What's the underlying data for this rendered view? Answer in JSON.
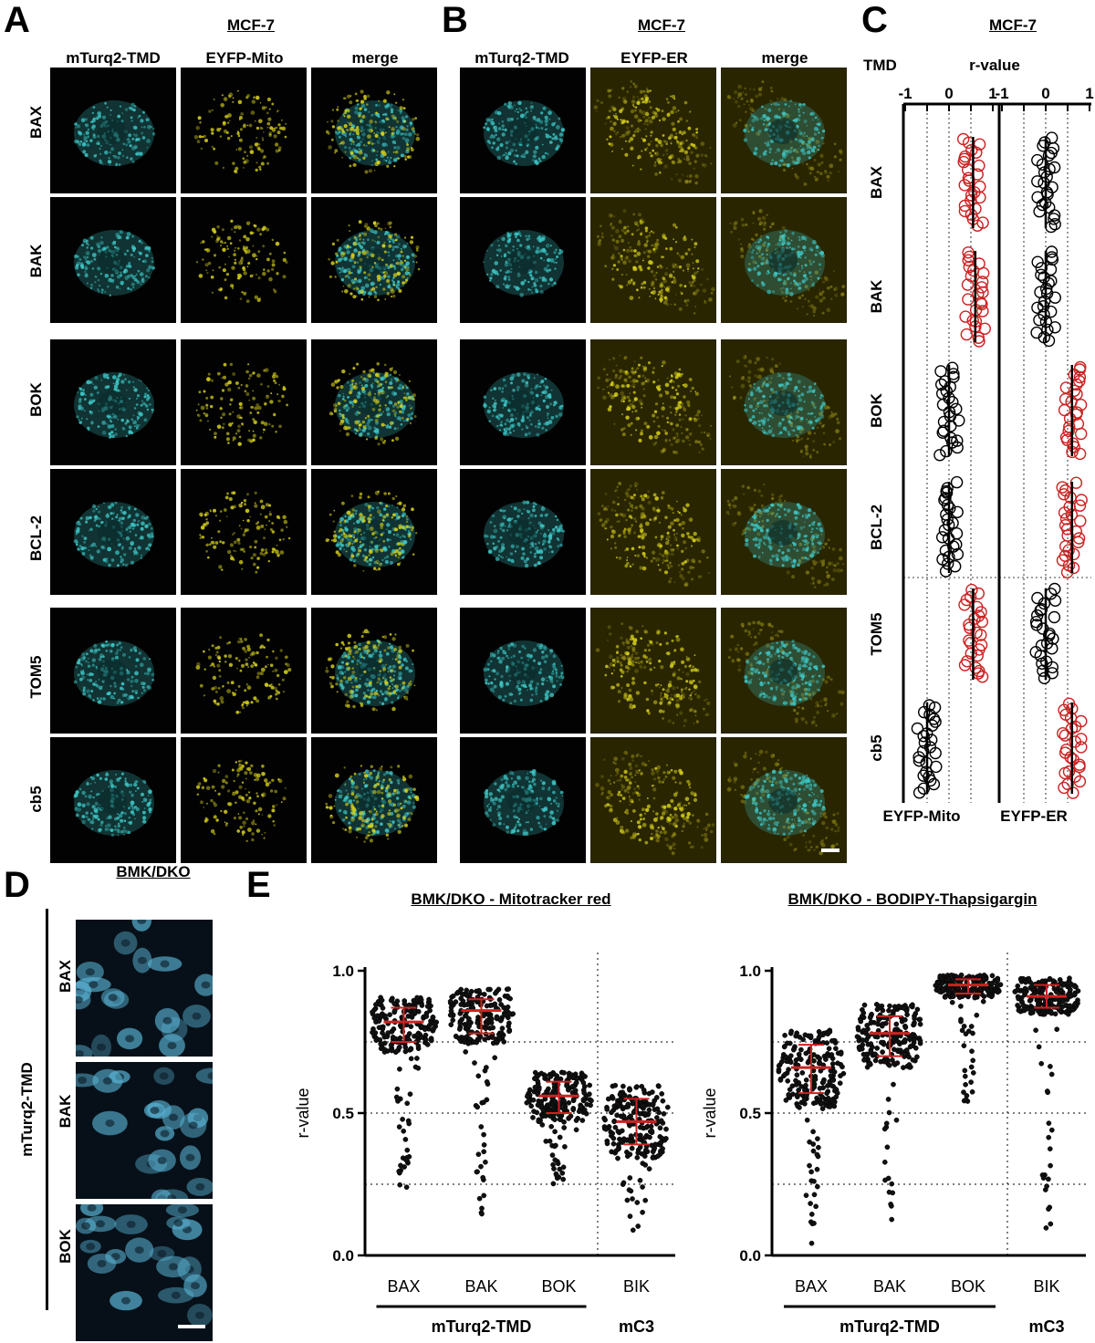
{
  "panels": {
    "A": {
      "letter": "A",
      "title": "MCF-7",
      "cols": [
        "mTurq2-TMD",
        "EYFP-Mito",
        "merge"
      ]
    },
    "B": {
      "letter": "B",
      "title": "MCF-7",
      "cols": [
        "mTurq2-TMD",
        "EYFP-ER",
        "merge"
      ]
    },
    "C": {
      "letter": "C",
      "title": "MCF-7",
      "tmd_label": "TMD",
      "rvalue_label": "r-value",
      "xticks": [
        "-1",
        "0",
        "1"
      ],
      "footer": [
        "EYFP-Mito",
        "EYFP-ER"
      ]
    },
    "D": {
      "letter": "D",
      "title": "BMK/DKO",
      "side_label": "mTurq2-TMD",
      "rows": [
        "BAX",
        "BAK",
        "BOK"
      ]
    },
    "E": {
      "letter": "E"
    }
  },
  "rows_AB": [
    "BAX",
    "BAK",
    "BOK",
    "BCL-2",
    "TOM5",
    "cb5"
  ],
  "colors": {
    "cyan": "#3ec8c8",
    "yellow": "#d8d21a",
    "red": "#cc2222",
    "dko_blue": "#5ab4d6"
  },
  "chart_data": [
    {
      "type": "scatter",
      "panel": "C",
      "title": "MCF-7",
      "xlabel": "r-value",
      "xlim": [
        -1,
        1
      ],
      "categories": [
        "BAX",
        "BAK",
        "BOK",
        "BCL-2",
        "TOM5",
        "cb5"
      ],
      "series": [
        {
          "name": "EYFP-Mito",
          "medians": [
            0.55,
            0.6,
            0.0,
            0.0,
            0.55,
            -0.5
          ]
        },
        {
          "name": "EYFP-ER",
          "medians": [
            0.0,
            0.0,
            0.6,
            0.6,
            0.0,
            0.6
          ]
        }
      ]
    },
    {
      "type": "scatter",
      "panel": "E",
      "title": "BMK/DKO - Mitotracker red",
      "ylabel": "r-value",
      "ylim": [
        0.0,
        1.0
      ],
      "yticks": [
        "0.0",
        "0.5",
        "1.0"
      ],
      "categories": [
        "BAX",
        "BAK",
        "BOK",
        "BIK"
      ],
      "groups": [
        {
          "label": "mTurq2-TMD",
          "span": [
            "BAX",
            "BOK"
          ]
        },
        {
          "label": "mC3",
          "span": [
            "BIK"
          ]
        }
      ],
      "median": [
        0.82,
        0.86,
        0.56,
        0.47
      ],
      "q1": [
        0.75,
        0.78,
        0.5,
        0.39
      ],
      "q3": [
        0.87,
        0.9,
        0.61,
        0.55
      ],
      "min": [
        0.23,
        0.08,
        0.25,
        0.08
      ],
      "max": [
        0.95,
        0.99,
        0.81,
        0.8
      ]
    },
    {
      "type": "scatter",
      "panel": "E",
      "title": "BMK/DKO - BODIPY-Thapsigargin",
      "ylabel": "r-value",
      "ylim": [
        0.0,
        1.0
      ],
      "yticks": [
        "0.0",
        "0.5",
        "1.0"
      ],
      "categories": [
        "BAX",
        "BAK",
        "BOK",
        "BIK"
      ],
      "groups": [
        {
          "label": "mTurq2-TMD",
          "span": [
            "BAX",
            "BOK"
          ]
        },
        {
          "label": "mC3",
          "span": [
            "BIK"
          ]
        }
      ],
      "median": [
        0.66,
        0.78,
        0.95,
        0.91
      ],
      "q1": [
        0.57,
        0.7,
        0.92,
        0.87
      ],
      "q3": [
        0.74,
        0.84,
        0.97,
        0.95
      ],
      "min": [
        0.02,
        0.12,
        0.54,
        0.08
      ],
      "max": [
        0.99,
        0.99,
        1.0,
        1.0
      ]
    }
  ]
}
